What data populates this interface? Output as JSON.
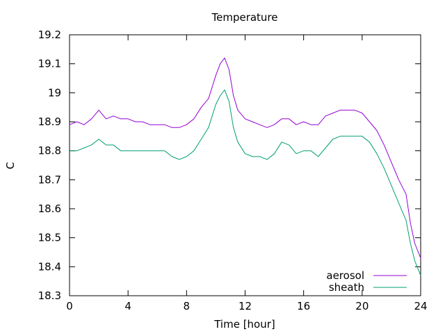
{
  "chart_data": {
    "type": "line",
    "title": "Temperature",
    "xlabel": "Time [hour]",
    "ylabel": "C",
    "xlim": [
      0,
      24
    ],
    "ylim": [
      18.3,
      19.2
    ],
    "xticks": [
      0,
      4,
      8,
      12,
      16,
      20,
      24
    ],
    "yticks": [
      18.3,
      18.4,
      18.5,
      18.6,
      18.7,
      18.8,
      18.9,
      19.0,
      19.1,
      19.2
    ],
    "ytick_labels": [
      "18.3",
      "18.4",
      "18.5",
      "18.6",
      "18.7",
      "18.8",
      "18.9",
      "19",
      "19.1",
      "19.2"
    ],
    "grid": false,
    "legend_position": "bottom-right",
    "series": [
      {
        "name": "aerosol",
        "color": "#9400d3",
        "x": [
          0,
          0.5,
          1.0,
          1.5,
          2.0,
          2.5,
          3.0,
          3.5,
          4.0,
          4.5,
          5.0,
          5.5,
          6.0,
          6.5,
          7.0,
          7.5,
          8.0,
          8.5,
          9.0,
          9.5,
          10.0,
          10.3,
          10.6,
          10.9,
          11.2,
          11.5,
          12.0,
          12.5,
          13.0,
          13.5,
          14.0,
          14.5,
          15.0,
          15.5,
          16.0,
          16.5,
          17.0,
          17.5,
          18.0,
          18.5,
          19.0,
          19.5,
          20.0,
          20.5,
          21.0,
          21.5,
          22.0,
          22.5,
          23.0,
          23.3,
          23.6,
          24.0
        ],
        "y": [
          18.89,
          18.9,
          18.89,
          18.91,
          18.94,
          18.91,
          18.92,
          18.91,
          18.91,
          18.9,
          18.9,
          18.89,
          18.89,
          18.89,
          18.88,
          18.88,
          18.89,
          18.91,
          18.95,
          18.98,
          19.06,
          19.1,
          19.12,
          19.08,
          18.99,
          18.94,
          18.91,
          18.9,
          18.89,
          18.88,
          18.89,
          18.91,
          18.91,
          18.89,
          18.9,
          18.89,
          18.89,
          18.92,
          18.93,
          18.94,
          18.94,
          18.94,
          18.93,
          18.9,
          18.87,
          18.82,
          18.76,
          18.7,
          18.65,
          18.55,
          18.48,
          18.43
        ]
      },
      {
        "name": "sheath",
        "color": "#009e73",
        "x": [
          0,
          0.5,
          1.0,
          1.5,
          2.0,
          2.5,
          3.0,
          3.5,
          4.0,
          4.5,
          5.0,
          5.5,
          6.0,
          6.5,
          7.0,
          7.5,
          8.0,
          8.5,
          9.0,
          9.5,
          10.0,
          10.3,
          10.6,
          10.9,
          11.2,
          11.5,
          12.0,
          12.5,
          13.0,
          13.5,
          14.0,
          14.5,
          15.0,
          15.5,
          16.0,
          16.5,
          17.0,
          17.5,
          18.0,
          18.5,
          19.0,
          19.5,
          20.0,
          20.5,
          21.0,
          21.5,
          22.0,
          22.5,
          23.0,
          23.3,
          23.6,
          24.0
        ],
        "y": [
          18.8,
          18.8,
          18.81,
          18.82,
          18.84,
          18.82,
          18.82,
          18.8,
          18.8,
          18.8,
          18.8,
          18.8,
          18.8,
          18.8,
          18.78,
          18.77,
          18.78,
          18.8,
          18.84,
          18.88,
          18.96,
          18.99,
          19.01,
          18.97,
          18.88,
          18.83,
          18.79,
          18.78,
          18.78,
          18.77,
          18.79,
          18.83,
          18.82,
          18.79,
          18.8,
          18.8,
          18.78,
          18.81,
          18.84,
          18.85,
          18.85,
          18.85,
          18.85,
          18.83,
          18.79,
          18.74,
          18.68,
          18.62,
          18.56,
          18.48,
          18.42,
          18.37
        ]
      }
    ]
  }
}
